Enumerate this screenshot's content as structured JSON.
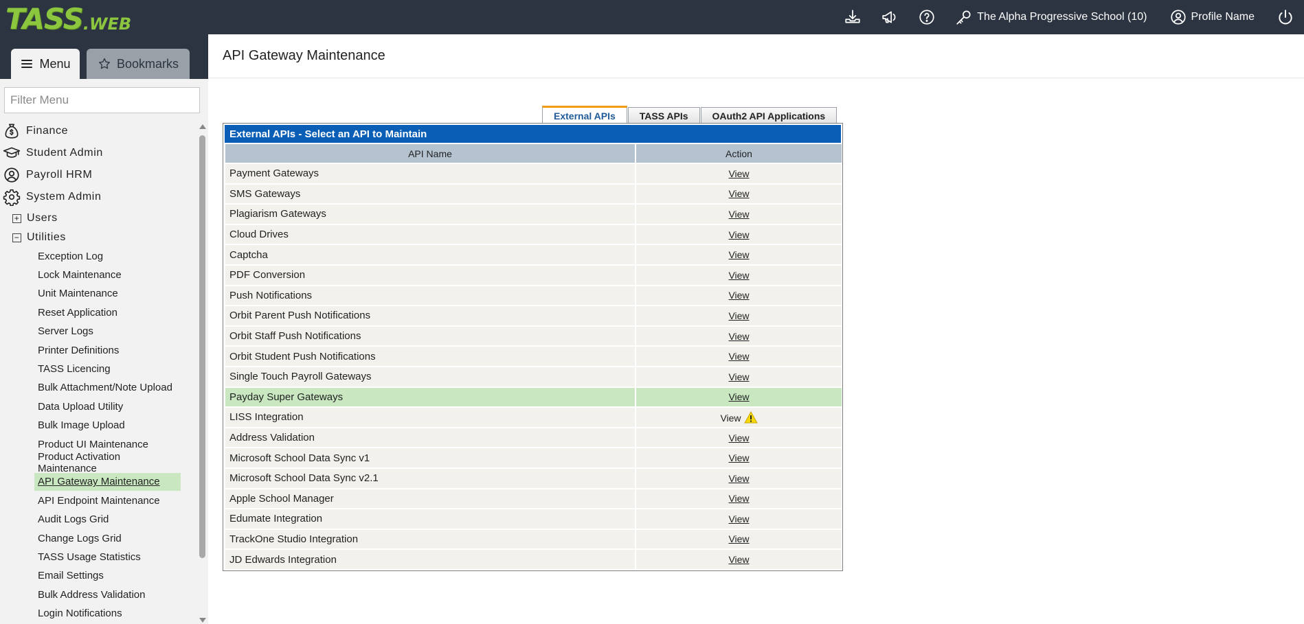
{
  "header": {
    "logo_main": "TASS",
    "logo_suffix": ".WEB",
    "school": "The Alpha Progressive School (10)",
    "profile": "Profile Name",
    "icons": [
      "download-icon",
      "megaphone-icon",
      "help-icon",
      "key-icon",
      "user-circle-icon",
      "power-icon"
    ]
  },
  "sidebar": {
    "menu_label": "Menu",
    "bookmarks_label": "Bookmarks",
    "filter_placeholder": "Filter Menu",
    "top_items": [
      {
        "label": "Finance",
        "icon": "money-bag-icon"
      },
      {
        "label": "Student Admin",
        "icon": "graduation-cap-icon"
      },
      {
        "label": "Payroll HRM",
        "icon": "user-circle-icon"
      },
      {
        "label": "System Admin",
        "icon": "gear-icon"
      }
    ],
    "sub_items": [
      {
        "label": "Users",
        "state": "+"
      },
      {
        "label": "Utilities",
        "state": "−"
      }
    ],
    "utilities": [
      "Exception Log",
      "Lock Maintenance",
      "Unit Maintenance",
      "Reset Application",
      "Server Logs",
      "Printer Definitions",
      "TASS Licencing",
      "Bulk Attachment/Note Upload",
      "Data Upload Utility",
      "Bulk Image Upload",
      "Product UI Maintenance",
      "Product Activation Maintenance",
      "API Gateway Maintenance",
      "API Endpoint Maintenance",
      "Audit Logs Grid",
      "Change Logs Grid",
      "TASS Usage Statistics",
      "Email Settings",
      "Bulk Address Validation",
      "Login Notifications"
    ],
    "active_item": "API Gateway Maintenance"
  },
  "main": {
    "title": "API Gateway Maintenance",
    "tabs": [
      "External APIs",
      "TASS APIs",
      "OAuth2 API Applications"
    ],
    "active_tab": "External APIs",
    "panel_title": "External APIs - Select an API to Maintain",
    "columns": [
      "API Name",
      "Action"
    ],
    "rows": [
      {
        "name": "Payment Gateways",
        "action": "View"
      },
      {
        "name": "SMS Gateways",
        "action": "View"
      },
      {
        "name": "Plagiarism Gateways",
        "action": "View"
      },
      {
        "name": "Cloud Drives",
        "action": "View"
      },
      {
        "name": "Captcha",
        "action": "View"
      },
      {
        "name": "PDF Conversion",
        "action": "View"
      },
      {
        "name": "Push Notifications",
        "action": "View"
      },
      {
        "name": "Orbit Parent Push Notifications",
        "action": "View"
      },
      {
        "name": "Orbit Staff Push Notifications",
        "action": "View"
      },
      {
        "name": "Orbit Student Push Notifications",
        "action": "View"
      },
      {
        "name": "Single Touch Payroll Gateways",
        "action": "View"
      },
      {
        "name": "Payday Super Gateways",
        "action": "View",
        "highlight": true
      },
      {
        "name": "LISS Integration",
        "action": "View",
        "warning": true
      },
      {
        "name": "Address Validation",
        "action": "View"
      },
      {
        "name": "Microsoft School Data Sync v1",
        "action": "View"
      },
      {
        "name": "Microsoft School Data Sync v2.1",
        "action": "View"
      },
      {
        "name": "Apple School Manager",
        "action": "View"
      },
      {
        "name": "Edumate Integration",
        "action": "View"
      },
      {
        "name": "TrackOne Studio Integration",
        "action": "View"
      },
      {
        "name": "JD Edwards Integration",
        "action": "View"
      }
    ]
  },
  "colors": {
    "topbar": "#2c3441",
    "logo_green": "#8cc63f",
    "panel_header": "#0b5eb5",
    "table_header": "#b5c3d1",
    "highlight": "#c9e8c2",
    "active_tab_accent": "#f39c12",
    "warning": "#f5d90a"
  }
}
